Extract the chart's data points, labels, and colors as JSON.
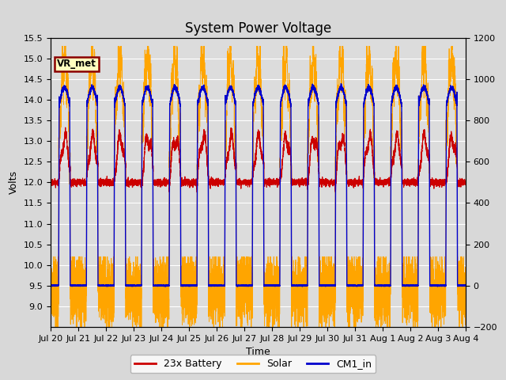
{
  "title": "System Power Voltage",
  "xlabel": "Time",
  "ylabel": "Volts",
  "ylim_left": [
    8.5,
    15.5
  ],
  "ylim_right": [
    -200,
    1200
  ],
  "yticks_left": [
    9.0,
    9.5,
    10.0,
    10.5,
    11.0,
    11.5,
    12.0,
    12.5,
    13.0,
    13.5,
    14.0,
    14.5,
    15.0,
    15.5
  ],
  "yticks_right": [
    -200,
    0,
    200,
    400,
    600,
    800,
    1000,
    1200
  ],
  "background_color": "#d8d8d8",
  "plot_bg_color": "#dcdcdc",
  "grid_color": "#ffffff",
  "annotation_text": "VR_met",
  "annotation_box_facecolor": "#ffffc0",
  "annotation_box_edgecolor": "#8b0000",
  "legend_entries": [
    "23x Battery",
    "Solar",
    "CM1_in"
  ],
  "line_colors_battery": "#cc0000",
  "line_colors_solar": "#ffa500",
  "line_colors_cm1": "#0000cc",
  "n_days": 15,
  "xtick_labels": [
    "Jul 20",
    "Jul 21",
    "Jul 22",
    "Jul 23",
    "Jul 24",
    "Jul 25",
    "Jul 26",
    "Jul 27",
    "Jul 28",
    "Jul 29",
    "Jul 30",
    "Jul 31",
    "Aug 1",
    "Aug 2",
    "Aug 3",
    "Aug 4"
  ],
  "title_fontsize": 12,
  "axis_label_fontsize": 9,
  "tick_fontsize": 8
}
